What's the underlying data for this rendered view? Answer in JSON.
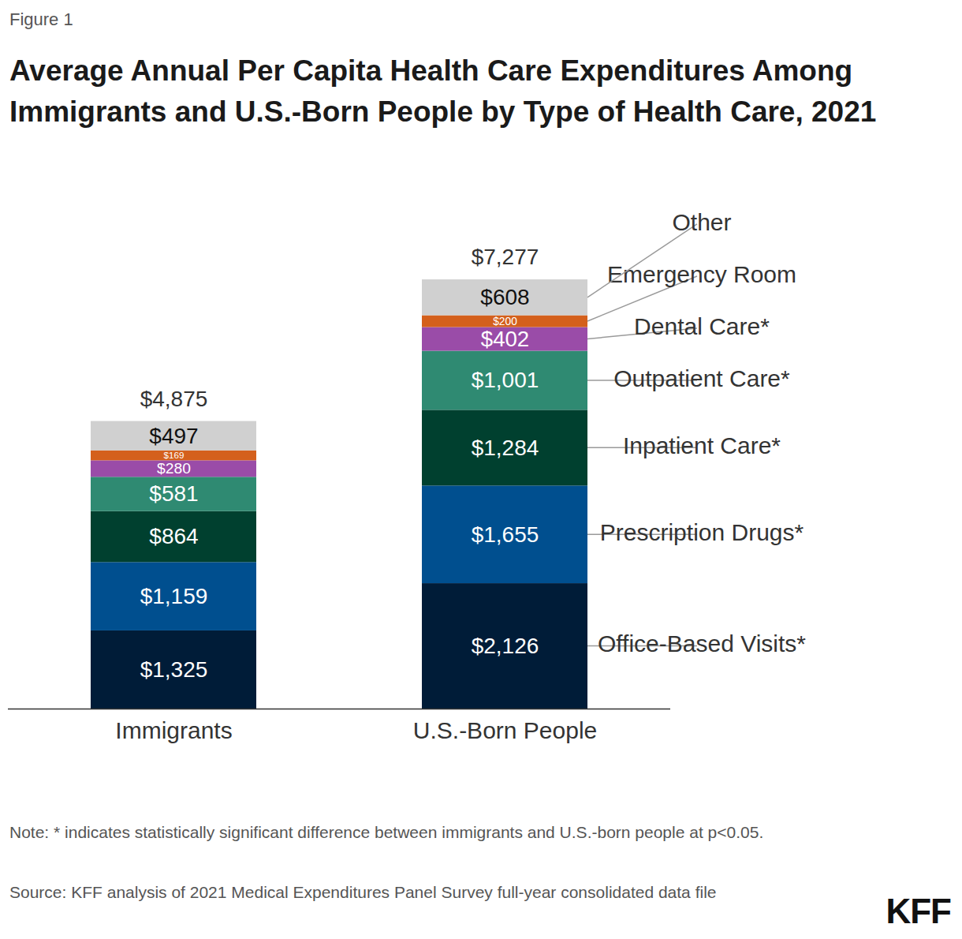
{
  "chart_data": {
    "type": "bar",
    "stacked": true,
    "data_labels": true,
    "tick_labels": "x",
    "figure_label": "Figure 1",
    "title": "Average Annual Per Capita Health Care Expenditures Among Immigrants and U.S.-Born People by Type of Health Care, 2021",
    "categories": [
      "Immigrants",
      "U.S.-Born People"
    ],
    "series": [
      {
        "name": "Office-Based Visits*",
        "color": "#001c38",
        "values": [
          1325,
          2126
        ],
        "value_labels": [
          "$1,325",
          "$2,126"
        ]
      },
      {
        "name": "Prescription Drugs*",
        "color": "#004f8f",
        "values": [
          1159,
          1655
        ],
        "value_labels": [
          "$1,159",
          "$1,655"
        ]
      },
      {
        "name": "Inpatient Care*",
        "color": "#00402f",
        "values": [
          864,
          1284
        ],
        "value_labels": [
          "$864",
          "$1,284"
        ]
      },
      {
        "name": "Outpatient Care*",
        "color": "#2f8a72",
        "values": [
          581,
          1001
        ],
        "value_labels": [
          "$581",
          "$1,001"
        ]
      },
      {
        "name": "Dental Care*",
        "color": "#9a4ca8",
        "values": [
          280,
          402
        ],
        "value_labels": [
          "$280",
          "$402"
        ]
      },
      {
        "name": "Emergency Room",
        "color": "#d4601c",
        "values": [
          169,
          200
        ],
        "value_labels": [
          "$169",
          "$200"
        ]
      },
      {
        "name": "Other",
        "color": "#d0d0d0",
        "values": [
          497,
          608
        ],
        "value_labels": [
          "$497",
          "$608"
        ]
      }
    ],
    "totals": [
      4875,
      7277
    ],
    "total_labels": [
      "$4,875",
      "$7,277"
    ],
    "note": "Note: * indicates statistically significant difference between immigrants and U.S.-born people at p<0.05.",
    "source": "Source: KFF analysis of 2021 Medical Expenditures Panel Survey full-year consolidated data file",
    "logo": "KFF"
  }
}
